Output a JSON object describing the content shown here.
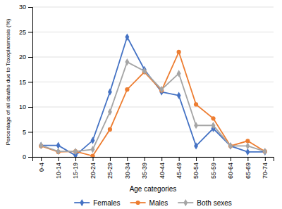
{
  "chart_data": {
    "type": "line",
    "xlabel": "Age categories",
    "ylabel": "Percentage of all deaths due to Toxoplasmosis (%)",
    "categories": [
      "0-4",
      "10-14",
      "15-19",
      "20-24",
      "25-29",
      "30-34",
      "35-39",
      "40-44",
      "45-49",
      "50-54",
      "55-59",
      "60-64",
      "65-69",
      "70-74"
    ],
    "series": [
      {
        "name": "Females",
        "color": "#4472C4",
        "marker": "diamond",
        "values": [
          2.3,
          2.3,
          0.3,
          3.3,
          13.0,
          24.0,
          17.5,
          13.0,
          12.3,
          2.2,
          5.7,
          2.2,
          1.0,
          1.0
        ]
      },
      {
        "name": "Males",
        "color": "#ED7D31",
        "marker": "circle",
        "values": [
          2.2,
          1.0,
          1.1,
          0.2,
          5.5,
          13.5,
          17.0,
          13.3,
          21.0,
          10.5,
          7.7,
          2.2,
          3.2,
          1.1
        ]
      },
      {
        "name": "Both sexes",
        "color": "#A5A5A5",
        "marker": "diamond",
        "values": [
          2.3,
          1.1,
          1.1,
          1.5,
          9.0,
          19.0,
          17.2,
          13.5,
          16.7,
          6.3,
          6.3,
          2.2,
          2.2,
          1.1
        ]
      }
    ],
    "ylim": [
      0,
      30
    ],
    "yticks": [
      0,
      5,
      10,
      15,
      20,
      25,
      30
    ],
    "grid": true,
    "legend": "bottom"
  }
}
